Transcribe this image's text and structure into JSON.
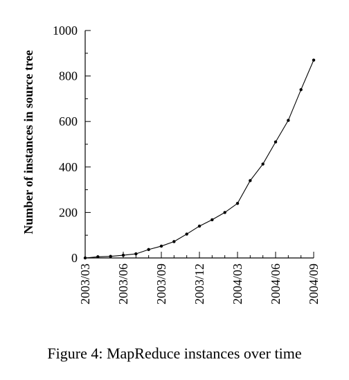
{
  "caption": "Figure 4: MapReduce instances over time",
  "chart_data": {
    "type": "line",
    "title": "",
    "xlabel": "",
    "ylabel": "Number of instances in source tree",
    "ylim": [
      0,
      1000
    ],
    "yticks": [
      0,
      200,
      400,
      600,
      800,
      1000
    ],
    "xlim": [
      "2003/03",
      "2004/09"
    ],
    "xticks": [
      "2003/03",
      "2003/06",
      "2003/09",
      "2003/12",
      "2004/03",
      "2004/06",
      "2004/09"
    ],
    "grid": false,
    "legend": "none",
    "series": [
      {
        "x": [
          "2003/03",
          "2003/04",
          "2003/05",
          "2003/06",
          "2003/07",
          "2003/08",
          "2003/09",
          "2003/10",
          "2003/11",
          "2003/12",
          "2004/01",
          "2004/02",
          "2004/03",
          "2004/04",
          "2004/05",
          "2004/06",
          "2004/07",
          "2004/08",
          "2004/09"
        ],
        "values": [
          0,
          5,
          7,
          12,
          18,
          37,
          52,
          72,
          105,
          140,
          168,
          200,
          240,
          340,
          413,
          510,
          605,
          740,
          870
        ]
      }
    ]
  }
}
